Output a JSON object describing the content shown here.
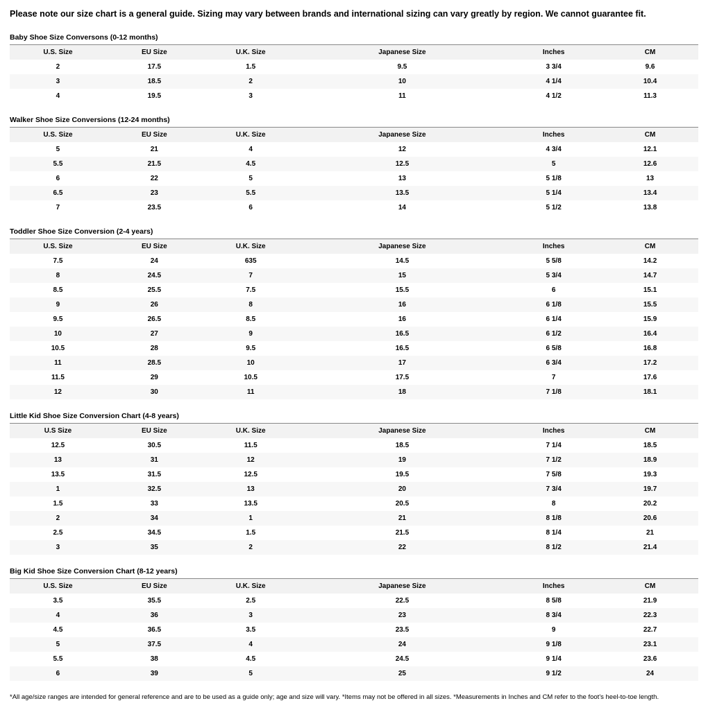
{
  "disclaimer_top": "Please note our size chart is a general guide. Sizing may vary between brands and international sizing can vary greatly by region. We cannot guarantee fit.",
  "footnote": "*All age/size ranges are intended for general reference and are to be used as a guide only; age and size will vary. *Items may not be offered in all sizes. *Measurements in Inches and CM refer to the foot's heel-to-toe length.",
  "tables": [
    {
      "title": "Baby Shoe Size Conversons (0-12 months)",
      "columns": [
        "U.S. Size",
        "EU Size",
        "U.K. Size",
        "Japanese Size",
        "Inches",
        "CM"
      ],
      "rows": [
        [
          "2",
          "17.5",
          "1.5",
          "9.5",
          "3 3/4",
          "9.6"
        ],
        [
          "3",
          "18.5",
          "2",
          "10",
          "4 1/4",
          "10.4"
        ],
        [
          "4",
          "19.5",
          "3",
          "11",
          "4 1/2",
          "11.3"
        ]
      ]
    },
    {
      "title": "Walker Shoe Size Conversions (12-24 months)",
      "columns": [
        "U.S. Size",
        "EU Size",
        "U.K. Size",
        "Japanese Size",
        "Inches",
        "CM"
      ],
      "rows": [
        [
          "5",
          "21",
          "4",
          "12",
          "4 3/4",
          "12.1"
        ],
        [
          "5.5",
          "21.5",
          "4.5",
          "12.5",
          "5",
          "12.6"
        ],
        [
          "6",
          "22",
          "5",
          "13",
          "5 1/8",
          "13"
        ],
        [
          "6.5",
          "23",
          "5.5",
          "13.5",
          "5 1/4",
          "13.4"
        ],
        [
          "7",
          "23.5",
          "6",
          "14",
          "5 1/2",
          "13.8"
        ]
      ]
    },
    {
      "title": "Toddler Shoe Size Conversion (2-4 years)",
      "columns": [
        "U.S. Size",
        "EU Size",
        "U.K. Size",
        "Japanese Size",
        "Inches",
        "CM"
      ],
      "rows": [
        [
          "7.5",
          "24",
          "635",
          "14.5",
          "5 5/8",
          "14.2"
        ],
        [
          "8",
          "24.5",
          "7",
          "15",
          "5 3/4",
          "14.7"
        ],
        [
          "8.5",
          "25.5",
          "7.5",
          "15.5",
          "6",
          "15.1"
        ],
        [
          "9",
          "26",
          "8",
          "16",
          "6 1/8",
          "15.5"
        ],
        [
          "9.5",
          "26.5",
          "8.5",
          "16",
          "6 1/4",
          "15.9"
        ],
        [
          "10",
          "27",
          "9",
          "16.5",
          "6 1/2",
          "16.4"
        ],
        [
          "10.5",
          "28",
          "9.5",
          "16.5",
          "6 5/8",
          "16.8"
        ],
        [
          "11",
          "28.5",
          "10",
          "17",
          "6 3/4",
          "17.2"
        ],
        [
          "11.5",
          "29",
          "10.5",
          "17.5",
          "7",
          "17.6"
        ],
        [
          "12",
          "30",
          "11",
          "18",
          "7 1/8",
          "18.1"
        ]
      ]
    },
    {
      "title": "Little Kid Shoe Size Conversion Chart (4-8 years)",
      "columns": [
        "U.S Size",
        "EU Size",
        "U.K. Size",
        "Japanese Size",
        "Inches",
        "CM"
      ],
      "rows": [
        [
          "12.5",
          "30.5",
          "11.5",
          "18.5",
          "7 1/4",
          "18.5"
        ],
        [
          "13",
          "31",
          "12",
          "19",
          "7 1/2",
          "18.9"
        ],
        [
          "13.5",
          "31.5",
          "12.5",
          "19.5",
          "7 5/8",
          "19.3"
        ],
        [
          "1",
          "32.5",
          "13",
          "20",
          "7 3/4",
          "19.7"
        ],
        [
          "1.5",
          "33",
          "13.5",
          "20.5",
          "8",
          "20.2"
        ],
        [
          "2",
          "34",
          "1",
          "21",
          "8 1/8",
          "20.6"
        ],
        [
          "2.5",
          "34.5",
          "1.5",
          "21.5",
          "8 1/4",
          "21"
        ],
        [
          "3",
          "35",
          "2",
          "22",
          "8 1/2",
          "21.4"
        ]
      ]
    },
    {
      "title": "Big Kid Shoe Size Conversion Chart (8-12 years)",
      "columns": [
        "U.S. Size",
        "EU Size",
        "U.K. Size",
        "Japanese Size",
        "Inches",
        "CM"
      ],
      "rows": [
        [
          "3.5",
          "35.5",
          "2.5",
          "22.5",
          "8 5/8",
          "21.9"
        ],
        [
          "4",
          "36",
          "3",
          "23",
          "8 3/4",
          "22.3"
        ],
        [
          "4.5",
          "36.5",
          "3.5",
          "23.5",
          "9",
          "22.7"
        ],
        [
          "5",
          "37.5",
          "4",
          "24",
          "9 1/8",
          "23.1"
        ],
        [
          "5.5",
          "38",
          "4.5",
          "24.5",
          "9 1/4",
          "23.6"
        ],
        [
          "6",
          "39",
          "5",
          "25",
          "9 1/2",
          "24"
        ]
      ]
    }
  ]
}
